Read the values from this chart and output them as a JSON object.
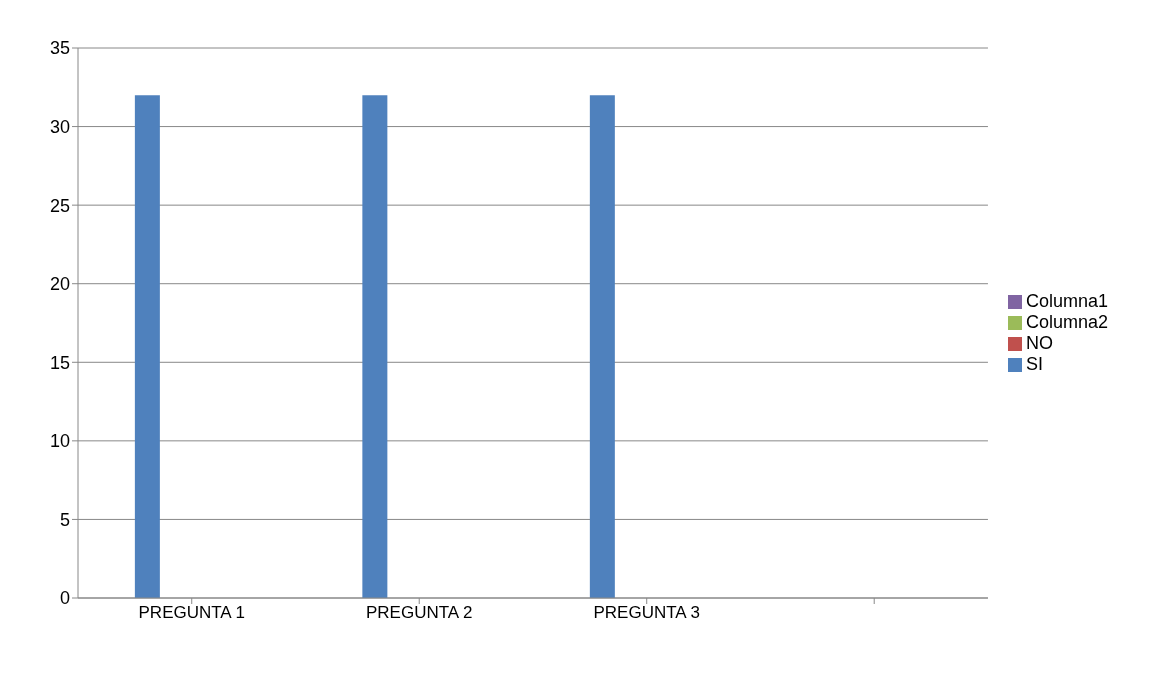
{
  "chart_data": {
    "type": "bar",
    "categories": [
      "PREGUNTA 1",
      "PREGUNTA 2",
      "PREGUNTA 3",
      null
    ],
    "series": [
      {
        "name": "SI",
        "color": "#4f81bd",
        "values": [
          32,
          32,
          32,
          null
        ]
      },
      {
        "name": "NO",
        "color": "#c0504d",
        "values": [
          0,
          0,
          0,
          null
        ]
      },
      {
        "name": "Columna2",
        "color": "#9bbb59",
        "values": [
          null,
          null,
          null,
          null
        ]
      },
      {
        "name": "Columna1",
        "color": "#8064a2",
        "values": [
          null,
          null,
          null,
          null
        ]
      }
    ],
    "ylim": [
      0,
      35
    ],
    "yticks": [
      0,
      5,
      10,
      15,
      20,
      25,
      30,
      35
    ],
    "grid": "y",
    "legend": "right"
  }
}
